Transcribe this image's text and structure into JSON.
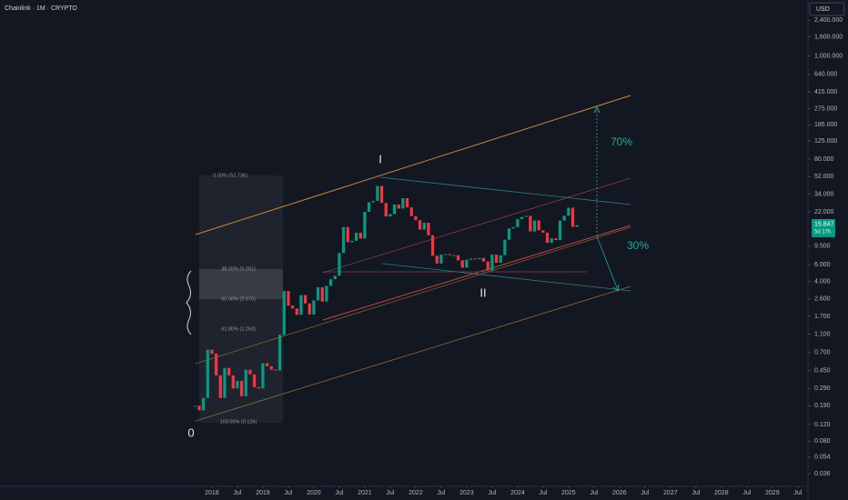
{
  "header": {
    "symbol": "Chainlink · 1M · CRYPTO",
    "currency": "USD"
  },
  "chart_data": {
    "type": "candlestick",
    "log_scale": true,
    "grid": false,
    "up_color": "#089981",
    "down_color": "#f23645",
    "x": [
      2017.667,
      2017.75,
      2017.833,
      2017.917,
      2018.0,
      2018.083,
      2018.167,
      2018.25,
      2018.333,
      2018.417,
      2018.5,
      2018.583,
      2018.667,
      2018.75,
      2018.833,
      2018.917,
      2019.0,
      2019.083,
      2019.167,
      2019.25,
      2019.333,
      2019.417,
      2019.5,
      2019.583,
      2019.667,
      2019.75,
      2019.833,
      2019.917,
      2020.0,
      2020.083,
      2020.167,
      2020.25,
      2020.333,
      2020.417,
      2020.5,
      2020.583,
      2020.667,
      2020.75,
      2020.833,
      2020.917,
      2021.0,
      2021.083,
      2021.167,
      2021.25,
      2021.333,
      2021.417,
      2021.5,
      2021.583,
      2021.667,
      2021.75,
      2021.833,
      2021.917,
      2022.0,
      2022.083,
      2022.167,
      2022.25,
      2022.333,
      2022.417,
      2022.5,
      2022.583,
      2022.667,
      2022.75,
      2022.833,
      2022.917,
      2023.0,
      2023.083,
      2023.167,
      2023.25,
      2023.333,
      2023.417,
      2023.5,
      2023.583,
      2023.667,
      2023.75,
      2023.833,
      2023.917,
      2024.0,
      2024.083,
      2024.167,
      2024.25,
      2024.333,
      2024.417,
      2024.5,
      2024.583,
      2024.667,
      2024.75,
      2024.833,
      2024.917,
      2025.0,
      2025.083,
      2025.167
    ],
    "values": [
      0.19,
      0.17,
      0.23,
      0.75,
      0.68,
      0.4,
      0.23,
      0.48,
      0.4,
      0.29,
      0.35,
      0.24,
      0.46,
      0.41,
      0.3,
      0.29,
      0.54,
      0.5,
      0.46,
      0.45,
      1.08,
      3.16,
      2.21,
      2.06,
      1.76,
      2.86,
      2.33,
      1.78,
      2.51,
      3.46,
      2.44,
      3.58,
      4.22,
      4.59,
      8.01,
      15.13,
      10.45,
      10.82,
      13.18,
      11.42,
      22.0,
      27.75,
      28.74,
      41.5,
      27.3,
      19.6,
      20.8,
      26.3,
      23.8,
      30.7,
      24.5,
      19.8,
      17.9,
      14.2,
      16.8,
      12.4,
      7.5,
      6.2,
      7.7,
      7.8,
      7.6,
      7.6,
      6.7,
      5.6,
      6.8,
      7.0,
      6.9,
      7.1,
      6.5,
      5.2,
      7.7,
      6.3,
      7.6,
      11.1,
      14.6,
      15.1,
      18.4,
      19.4,
      19.9,
      13.6,
      17.8,
      14.0,
      13.2,
      10.3,
      11.5,
      11.0,
      17.7,
      20.0,
      24.3,
      15.2,
      15.847
    ],
    "countdown": "5d 17h",
    "xlim": [
      2013.84,
      2029.7
    ],
    "xticks": [
      2018,
      {
        "value": 2018.5,
        "label": "Jul"
      },
      2019,
      {
        "value": 2019.5,
        "label": "Jul"
      },
      2020,
      {
        "value": 2020.5,
        "label": "Jul"
      },
      2021,
      {
        "value": 2021.5,
        "label": "Jul"
      },
      2022,
      {
        "value": 2022.5,
        "label": "Jul"
      },
      2023,
      {
        "value": 2023.5,
        "label": "Jul"
      },
      2024,
      {
        "value": 2024.5,
        "label": "Jul"
      },
      2025,
      {
        "value": 2025.5,
        "label": "Jul"
      },
      2026,
      {
        "value": 2026.5,
        "label": "Jul"
      },
      2027,
      {
        "value": 2027.5,
        "label": "Jul"
      },
      2028,
      {
        "value": 2028.5,
        "label": "Jul"
      },
      2029,
      {
        "value": 2029.5,
        "label": "Jul"
      }
    ],
    "ylim": [
      0.0264,
      3940
    ],
    "yticks": [
      {
        "value": 2400,
        "label": "2,400.000"
      },
      {
        "value": 1600,
        "label": "1,600.000"
      },
      {
        "value": 1000,
        "label": "1,000.000"
      },
      {
        "value": 640,
        "label": "640.000"
      },
      {
        "value": 415,
        "label": "415.000"
      },
      {
        "value": 275,
        "label": "275.000"
      },
      {
        "value": 185,
        "label": "185.000"
      },
      {
        "value": 125,
        "label": "125.000"
      },
      {
        "value": 80,
        "label": "80.000"
      },
      {
        "value": 52,
        "label": "52.000"
      },
      {
        "value": 34,
        "label": "34.000"
      },
      {
        "value": 22,
        "label": "22.000"
      },
      {
        "value": 9.5,
        "label": "9.500"
      },
      {
        "value": 6,
        "label": "6.000"
      },
      {
        "value": 4,
        "label": "4.000"
      },
      {
        "value": 2.6,
        "label": "2.600"
      },
      {
        "value": 1.7,
        "label": "1.700"
      },
      {
        "value": 1.1,
        "label": "1.100"
      },
      {
        "value": 0.7,
        "label": "0.700"
      },
      {
        "value": 0.45,
        "label": "0.450"
      },
      {
        "value": 0.29,
        "label": "0.290"
      },
      {
        "value": 0.19,
        "label": "0.190"
      },
      {
        "value": 0.12,
        "label": "0.120"
      },
      {
        "value": 0.08,
        "label": "0.080"
      },
      {
        "value": 0.054,
        "label": "0.054"
      },
      {
        "value": 0.036,
        "label": "0.036"
      }
    ],
    "annotations": [
      "I",
      "II",
      "0",
      "70%",
      "30%"
    ],
    "fib_labels": [
      "0.00% (52.736)",
      "38.20% (5.251)",
      "50.00% (2.570)",
      "61.80% (1.263)",
      "100.00% (0.126)"
    ]
  }
}
